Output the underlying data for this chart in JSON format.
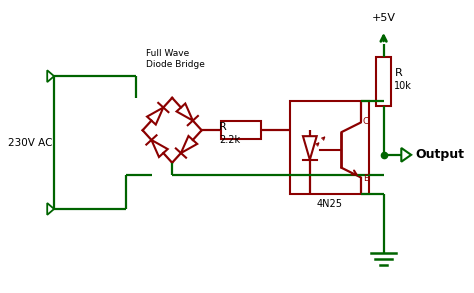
{
  "bg_color": "#ffffff",
  "dark_red": "#8B0000",
  "dark_green": "#006400",
  "text_color": "#000000",
  "label_230v": "230V AC",
  "label_fullwave": "Full Wave\nDiode Bridge",
  "label_R1": "R",
  "label_R1_val": "2.2k",
  "label_R2": "R",
  "label_R2_val": "10k",
  "label_4n25": "4N25",
  "label_C": "C",
  "label_E": "E",
  "label_5v": "+5V",
  "label_output": "Output"
}
